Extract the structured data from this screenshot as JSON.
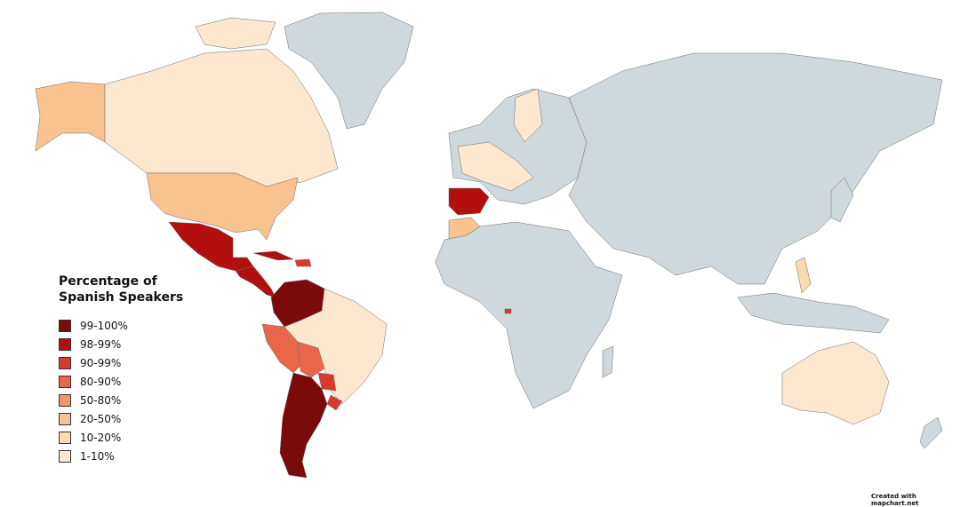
{
  "legend": {
    "title": "Percentage of Spanish Speakers",
    "items": [
      {
        "label": "99-100%",
        "color": "#7b0a0a"
      },
      {
        "label": "98-99%",
        "color": "#b30f0f"
      },
      {
        "label": "90-99%",
        "color": "#d93a2b"
      },
      {
        "label": "80-90%",
        "color": "#e9664b"
      },
      {
        "label": "50-80%",
        "color": "#f4956a"
      },
      {
        "label": "20-50%",
        "color": "#f8c38e"
      },
      {
        "label": "10-20%",
        "color": "#fbd8ae"
      },
      {
        "label": "1-10%",
        "color": "#fde7cf"
      }
    ]
  },
  "credit": "Created with mapchart.net",
  "other_color": "#cfd8dc"
}
